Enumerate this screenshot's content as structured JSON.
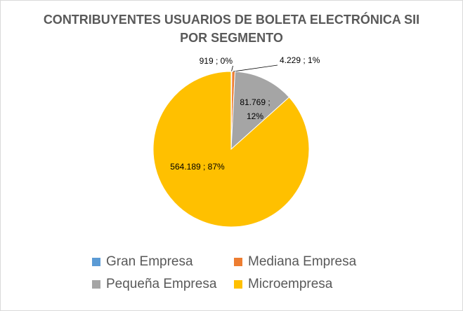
{
  "chart_data": {
    "type": "pie",
    "title": "CONTRIBUYENTES USUARIOS DE BOLETA ELECTRÓNICA SII POR SEGMENTO",
    "categories": [
      "Gran Empresa",
      "Mediana Empresa",
      "Pequeña Empresa",
      "Microempresa"
    ],
    "values": [
      919,
      4229,
      81769,
      564189
    ],
    "value_labels": [
      "919 ; 0%",
      "4.229 ; 1%",
      "81.769 ; 12%",
      "564.189 ; 87%"
    ],
    "colors": [
      "#5b9bd5",
      "#ed7d31",
      "#a5a5a5",
      "#ffc000"
    ],
    "legend": "bottom"
  }
}
